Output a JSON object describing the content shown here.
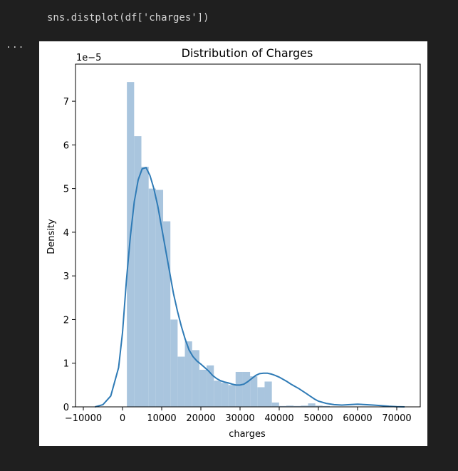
{
  "code_cell": {
    "source": "sns.distplot(df['charges'])"
  },
  "output": {
    "toggle_label": "..."
  },
  "chart_data": {
    "type": "bar",
    "subtype": "histogram with kde line",
    "title": "Distribution of Charges",
    "xlabel": "charges",
    "ylabel": "Density",
    "y_offset_label": "1e−5",
    "xlim": [
      -12000,
      76000
    ],
    "ylim": [
      0,
      7.85
    ],
    "xticks": [
      -10000,
      0,
      10000,
      20000,
      30000,
      40000,
      50000,
      60000,
      70000
    ],
    "xtick_labels": [
      "−10000",
      "0",
      "10000",
      "20000",
      "30000",
      "40000",
      "50000",
      "60000",
      "70000"
    ],
    "yticks": [
      0,
      1,
      2,
      3,
      4,
      5,
      6,
      7
    ],
    "ytick_labels": [
      "0",
      "1",
      "2",
      "3",
      "4",
      "5",
      "6",
      "7"
    ],
    "bar_color": "#a9c5de",
    "line_color": "#2f7bb6",
    "histogram": {
      "bin_width": 1850,
      "bin_start": 1120,
      "values": [
        7.44,
        6.2,
        5.5,
        5.0,
        4.97,
        4.25,
        2.0,
        1.15,
        1.5,
        1.3,
        0.85,
        0.95,
        0.6,
        0.55,
        0.5,
        0.8,
        0.8,
        0.7,
        0.45,
        0.58,
        0.1,
        0.02,
        0.03,
        0.02,
        0.03,
        0.08,
        0.03,
        0.02,
        0.0,
        0.0,
        0.0,
        0.0,
        0.0,
        0.0,
        0.0
      ]
    },
    "kde": {
      "x": [
        -7000,
        -5000,
        -3000,
        -1000,
        0,
        1000,
        2000,
        3000,
        4000,
        5000,
        6000,
        7000,
        8000,
        9000,
        10000,
        11000,
        12000,
        13000,
        14000,
        15000,
        16000,
        17000,
        18000,
        19000,
        20000,
        21000,
        22000,
        23000,
        24000,
        25000,
        26000,
        27000,
        28000,
        29000,
        30000,
        31000,
        32000,
        33000,
        34000,
        35000,
        36000,
        37000,
        38000,
        39000,
        40000,
        41000,
        42000,
        43000,
        44000,
        45000,
        46000,
        47000,
        48000,
        49000,
        50000,
        52000,
        54000,
        56000,
        58000,
        60000,
        62000,
        64000,
        66000,
        68000,
        70000,
        72000
      ],
      "y": [
        0.0,
        0.05,
        0.25,
        0.9,
        1.7,
        2.9,
        3.9,
        4.7,
        5.2,
        5.45,
        5.48,
        5.3,
        5.0,
        4.6,
        4.1,
        3.6,
        3.1,
        2.6,
        2.2,
        1.85,
        1.55,
        1.3,
        1.15,
        1.05,
        0.98,
        0.9,
        0.82,
        0.72,
        0.65,
        0.6,
        0.57,
        0.55,
        0.52,
        0.5,
        0.5,
        0.52,
        0.58,
        0.65,
        0.72,
        0.76,
        0.77,
        0.77,
        0.75,
        0.72,
        0.68,
        0.63,
        0.58,
        0.52,
        0.47,
        0.42,
        0.36,
        0.3,
        0.24,
        0.18,
        0.13,
        0.08,
        0.05,
        0.04,
        0.05,
        0.06,
        0.05,
        0.04,
        0.03,
        0.015,
        0.005,
        0.0
      ]
    }
  }
}
